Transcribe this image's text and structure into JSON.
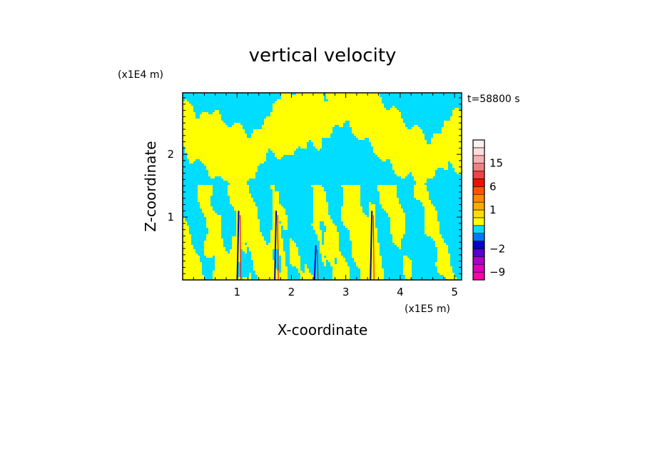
{
  "chart_data": {
    "type": "heatmap",
    "title": "vertical velocity",
    "time_label": "t=58800 s",
    "xlabel": "X-coordinate",
    "ylabel": "Z-coordinate",
    "x_unit": "(x1E5 m)",
    "y_unit": "(x1E4 m)",
    "xlim": [
      0,
      5.13
    ],
    "ylim": [
      0,
      2.98
    ],
    "x_ticks": [
      1,
      2,
      3,
      4,
      5
    ],
    "y_ticks": [
      1,
      2
    ],
    "grid": false,
    "colorbar": {
      "bands": [
        {
          "lo": -12,
          "hi": -9,
          "color": "#ff00aa"
        },
        {
          "lo": -9,
          "hi": -6,
          "color": "#dd00bb"
        },
        {
          "lo": -6,
          "hi": -4,
          "color": "#aa00cc"
        },
        {
          "lo": -4,
          "hi": -2,
          "color": "#5500cc"
        },
        {
          "lo": -2,
          "hi": -1,
          "color": "#0000cc"
        },
        {
          "lo": -1,
          "hi": -0.5,
          "color": "#0077ff"
        },
        {
          "lo": -0.5,
          "hi": 0,
          "color": "#00ddff"
        },
        {
          "lo": 0,
          "hi": 0.5,
          "color": "#ffff00"
        },
        {
          "lo": 0.5,
          "hi": 1,
          "color": "#ffdd00"
        },
        {
          "lo": 1,
          "hi": 2,
          "color": "#ffaa00"
        },
        {
          "lo": 2,
          "hi": 4,
          "color": "#ff8800"
        },
        {
          "lo": 4,
          "hi": 6,
          "color": "#ff5500"
        },
        {
          "lo": 6,
          "hi": 9,
          "color": "#ee1100"
        },
        {
          "lo": 9,
          "hi": 12,
          "color": "#ee4444"
        },
        {
          "lo": 12,
          "hi": 15,
          "color": "#f08080"
        },
        {
          "lo": 15,
          "hi": 18,
          "color": "#f8b0b0"
        },
        {
          "lo": 18,
          "hi": 21,
          "color": "#ffdddd"
        },
        {
          "lo": 21,
          "hi": 25,
          "color": "#fff0f0"
        }
      ],
      "labels": [
        {
          "value": 15,
          "text": "15"
        },
        {
          "value": 6,
          "text": "6"
        },
        {
          "value": 1,
          "text": "1"
        },
        {
          "value": -2,
          "text": "−2"
        },
        {
          "value": -9,
          "text": "−9"
        }
      ]
    },
    "field": {
      "dominant_positive_color": "#ffff00",
      "dominant_negative_color": "#00ddff",
      "updraft_columns_x": [
        1.03,
        1.72,
        2.45,
        3.48
      ]
    }
  }
}
